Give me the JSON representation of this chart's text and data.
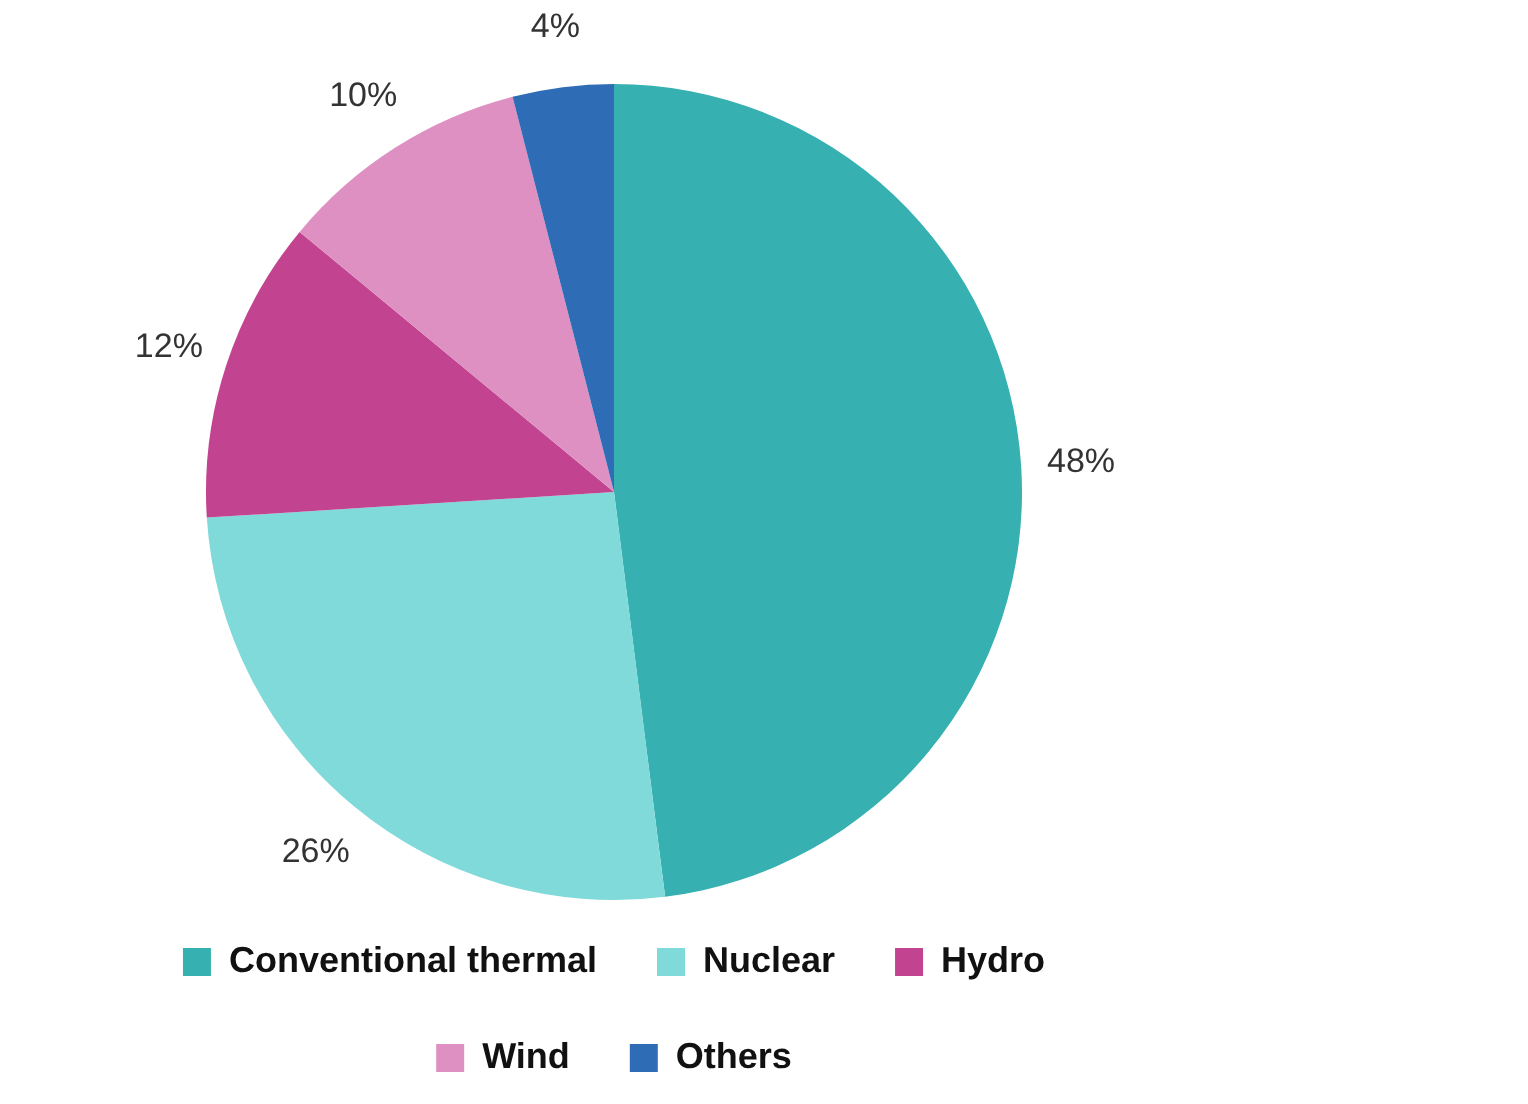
{
  "chart_data": {
    "type": "pie",
    "categories": [
      "Conventional thermal",
      "Nuclear",
      "Hydro",
      "Wind",
      "Others"
    ],
    "values": [
      48,
      26,
      12,
      10,
      4
    ],
    "colors": [
      "#36b0b0",
      "#80dada",
      "#c2438f",
      "#df90c3",
      "#2e6db5"
    ],
    "value_labels": [
      "48%",
      "26%",
      "12%",
      "10%",
      "4%"
    ],
    "legend": "bottom"
  }
}
